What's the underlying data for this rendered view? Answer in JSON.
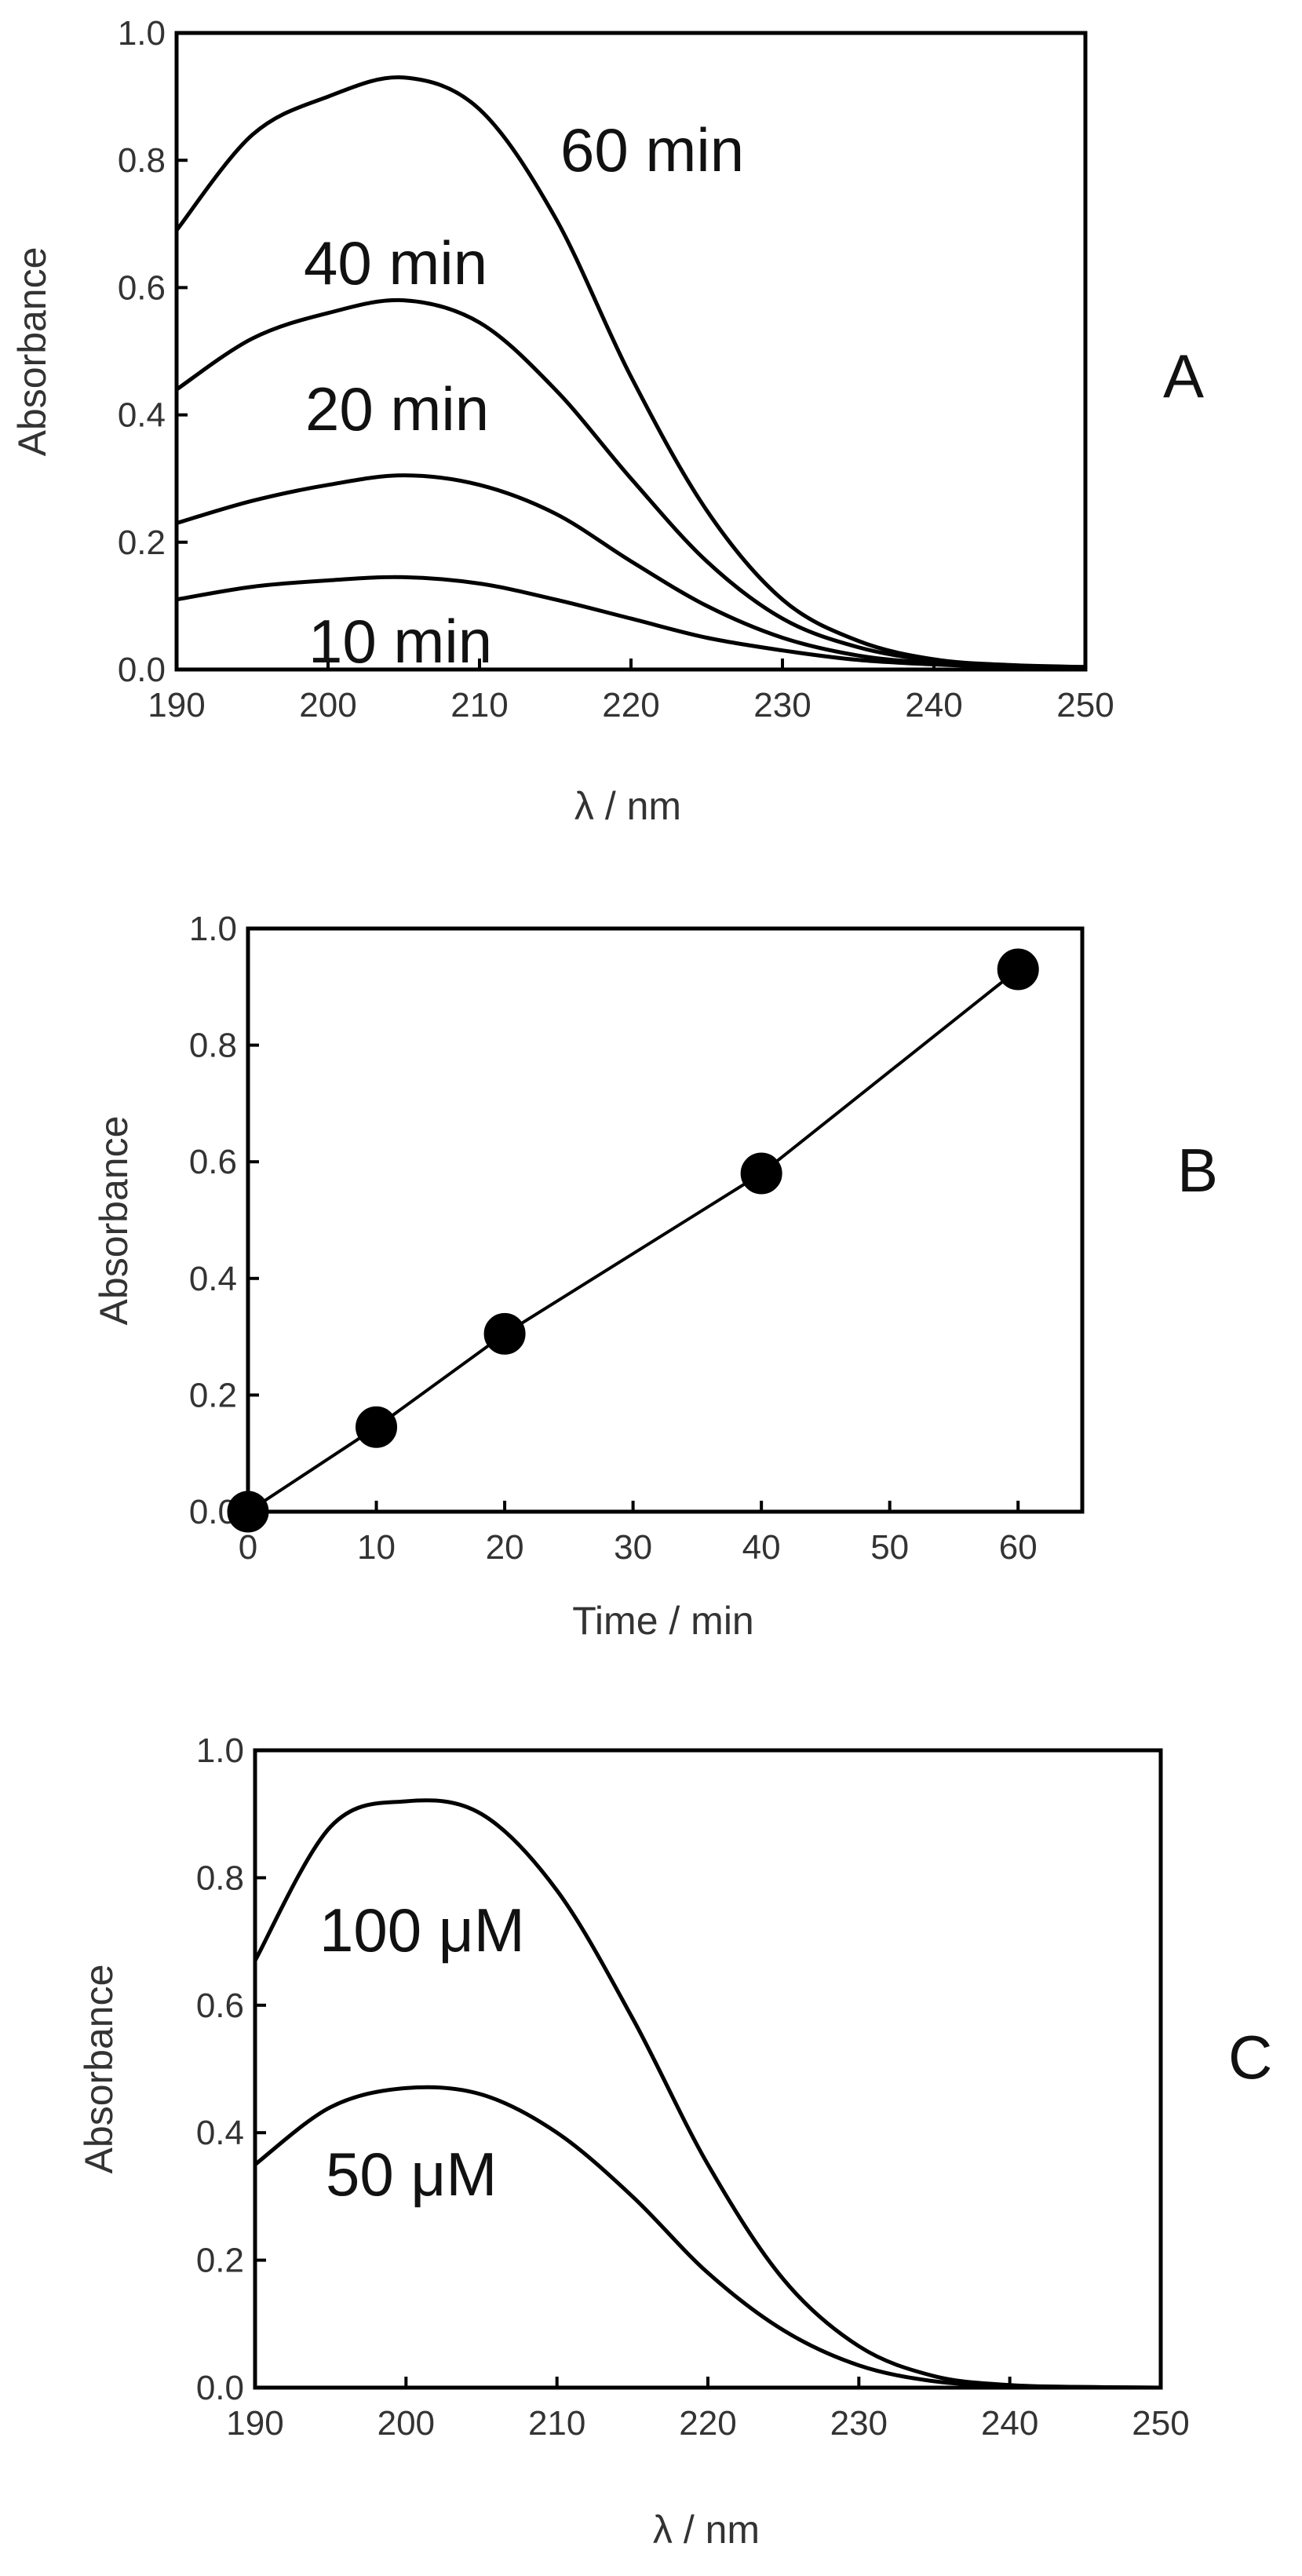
{
  "chart_data": [
    {
      "panel": "A",
      "type": "line",
      "xlabel": "λ / nm",
      "ylabel": "Absorbance",
      "xlim": [
        190,
        250
      ],
      "ylim": [
        0.0,
        1.0
      ],
      "xticks": [
        "190",
        "200",
        "210",
        "220",
        "230",
        "240",
        "250"
      ],
      "yticks": [
        "0.0",
        "0.2",
        "0.4",
        "0.6",
        "0.8",
        "1.0"
      ],
      "series": [
        {
          "name": "10 min",
          "x": [
            190,
            195,
            200,
            205,
            210,
            215,
            220,
            225,
            230,
            235,
            240,
            245,
            250
          ],
          "values": [
            0.11,
            0.13,
            0.14,
            0.145,
            0.135,
            0.11,
            0.08,
            0.05,
            0.03,
            0.015,
            0.008,
            0.004,
            0.003
          ]
        },
        {
          "name": "20 min",
          "x": [
            190,
            195,
            200,
            205,
            210,
            215,
            220,
            225,
            230,
            235,
            240,
            245,
            250
          ],
          "values": [
            0.23,
            0.265,
            0.29,
            0.305,
            0.29,
            0.245,
            0.17,
            0.1,
            0.05,
            0.022,
            0.01,
            0.005,
            0.003
          ]
        },
        {
          "name": "40 min",
          "x": [
            190,
            195,
            200,
            205,
            210,
            215,
            220,
            225,
            230,
            235,
            240,
            245,
            250
          ],
          "values": [
            0.44,
            0.52,
            0.56,
            0.58,
            0.545,
            0.44,
            0.3,
            0.17,
            0.08,
            0.035,
            0.014,
            0.006,
            0.004
          ]
        },
        {
          "name": "60 min",
          "x": [
            190,
            195,
            200,
            205,
            210,
            215,
            220,
            225,
            230,
            235,
            240,
            245,
            250
          ],
          "values": [
            0.69,
            0.84,
            0.9,
            0.93,
            0.88,
            0.71,
            0.46,
            0.25,
            0.11,
            0.045,
            0.016,
            0.007,
            0.004
          ]
        }
      ],
      "annotations": [
        "60 min",
        "40 min",
        "20 min",
        "10 min"
      ],
      "panel_label": "A"
    },
    {
      "panel": "B",
      "type": "scatter",
      "xlabel": "Time / min",
      "ylabel": "Absorbance",
      "xlim": [
        0,
        65
      ],
      "ylim": [
        0.0,
        1.0
      ],
      "xticks": [
        "0",
        "10",
        "20",
        "30",
        "40",
        "50",
        "60"
      ],
      "yticks": [
        "0.0",
        "0.2",
        "0.4",
        "0.6",
        "0.8",
        "1.0"
      ],
      "x": [
        0,
        10,
        20,
        40,
        60
      ],
      "values": [
        0.0,
        0.145,
        0.305,
        0.58,
        0.93
      ],
      "fit_line": true,
      "panel_label": "B"
    },
    {
      "panel": "C",
      "type": "line",
      "xlabel": "λ / nm",
      "ylabel": "Absorbance",
      "xlim": [
        190,
        250
      ],
      "ylim": [
        0.0,
        1.0
      ],
      "xticks": [
        "190",
        "200",
        "210",
        "220",
        "230",
        "240",
        "250"
      ],
      "yticks": [
        "0.0",
        "0.2",
        "0.4",
        "0.6",
        "0.8",
        "1.0"
      ],
      "series": [
        {
          "name": "50 μM",
          "x": [
            190,
            195,
            200,
            205,
            210,
            215,
            220,
            225,
            230,
            235,
            240,
            245,
            250
          ],
          "values": [
            0.35,
            0.44,
            0.47,
            0.46,
            0.4,
            0.3,
            0.18,
            0.09,
            0.035,
            0.01,
            0.003,
            0.001,
            0.0
          ]
        },
        {
          "name": "100 μM",
          "x": [
            190,
            195,
            200,
            205,
            210,
            215,
            220,
            225,
            230,
            235,
            240,
            245,
            250
          ],
          "values": [
            0.67,
            0.88,
            0.92,
            0.9,
            0.78,
            0.58,
            0.35,
            0.17,
            0.065,
            0.018,
            0.004,
            0.001,
            0.0
          ]
        }
      ],
      "annotations": [
        "100 μM",
        "50 μM"
      ],
      "panel_label": "C"
    }
  ]
}
